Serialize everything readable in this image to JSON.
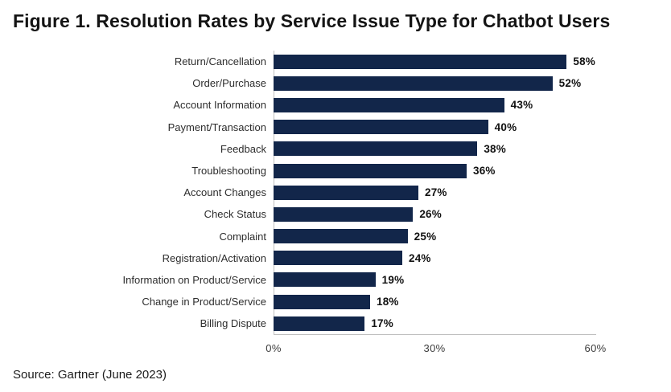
{
  "page": {
    "title": "Figure 1. Resolution Rates by Service Issue Type for Chatbot Users",
    "source": "Source: Gartner (June 2023)"
  },
  "colors": {
    "bar": "#12264a",
    "axis": "#bfbfbf",
    "title": "#141414",
    "category_label": "#2d2d2d",
    "value_label": "#111111",
    "tick_label": "#3c3c3c"
  },
  "chart_data": {
    "type": "bar",
    "orientation": "horizontal",
    "title": "Figure 1. Resolution Rates by Service Issue Type for Chatbot Users",
    "categories": [
      "Return/Cancellation",
      "Order/Purchase",
      "Account Information",
      "Payment/Transaction",
      "Feedback",
      "Troubleshooting",
      "Account Changes",
      "Check Status",
      "Complaint",
      "Registration/Activation",
      "Information on Product/Service",
      "Change in Product/Service",
      "Billing Dispute"
    ],
    "values": [
      58,
      52,
      43,
      40,
      38,
      36,
      27,
      26,
      25,
      24,
      19,
      18,
      17
    ],
    "value_labels": [
      "58%",
      "52%",
      "43%",
      "40%",
      "38%",
      "36%",
      "27%",
      "26%",
      "25%",
      "24%",
      "19%",
      "18%",
      "17%"
    ],
    "xlabel": "",
    "ylabel": "",
    "xlim": [
      0,
      60
    ],
    "x_ticks": [
      "0%",
      "30%",
      "60%"
    ],
    "x_tick_values": [
      0,
      30,
      60
    ],
    "grid": false,
    "legend": false,
    "source": "Source: Gartner (June 2023)"
  }
}
